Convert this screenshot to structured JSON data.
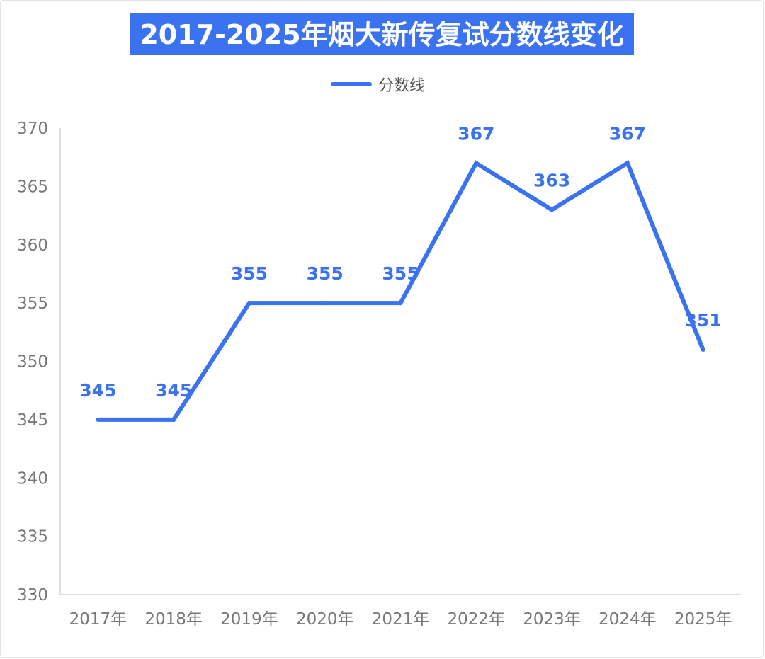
{
  "chart_data": {
    "type": "line",
    "title": "2017-2025年烟大新传复试分数线变化",
    "categories": [
      "2017年",
      "2018年",
      "2019年",
      "2020年",
      "2021年",
      "2022年",
      "2023年",
      "2024年",
      "2025年"
    ],
    "series": [
      {
        "name": "分数线",
        "values": [
          345,
          345,
          355,
          355,
          355,
          367,
          363,
          367,
          351
        ]
      }
    ],
    "ylim": [
      330,
      370
    ],
    "yticks": [
      "330",
      "335",
      "340",
      "345",
      "350",
      "355",
      "360",
      "365",
      "370"
    ],
    "data_labels": [
      "345",
      "345",
      "355",
      "355",
      "355",
      "367",
      "363",
      "367",
      "351"
    ],
    "legend_position": "top-center",
    "grid": false,
    "drop_lines": true
  },
  "colors": {
    "series": "#3a72f0",
    "title_background": "#3a72f0",
    "title_text": "#ffffff",
    "label": "#3a72f0",
    "axis": "#d4d4d4"
  }
}
